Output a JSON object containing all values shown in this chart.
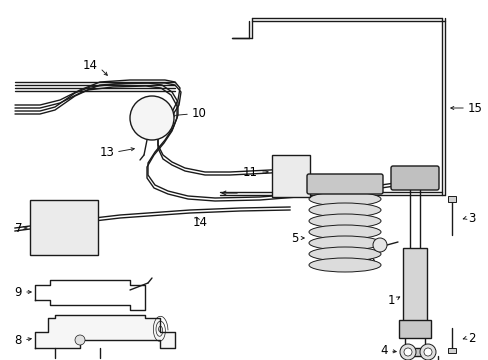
{
  "bg_color": "#ffffff",
  "line_color": "#1a1a1a",
  "label_color": "#000000",
  "label_fontsize": 8.5,
  "fig_width": 4.89,
  "fig_height": 3.6,
  "dpi": 100
}
